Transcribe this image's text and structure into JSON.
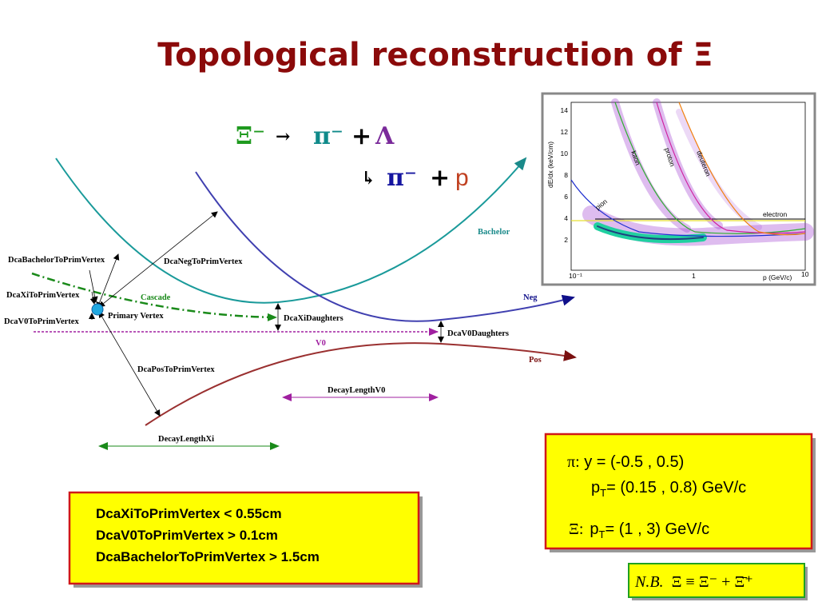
{
  "title": "Topological reconstruction of Ξ",
  "decay": {
    "line1": [
      "Ξ⁻",
      "→",
      "π⁻",
      "+",
      "Λ"
    ],
    "line2": [
      "↳",
      "π⁻",
      "+",
      "p"
    ]
  },
  "diagram": {
    "dca_bachelor": "DcaBachelorToPrimVertex",
    "dca_xi": "DcaXiToPrimVertex",
    "dca_v0": "DcaV0ToPrimVertex",
    "primary_vertex": "Primary Vertex",
    "cascade": "Cascade",
    "dca_neg": "DcaNegToPrimVertex",
    "dca_pos": "DcaPosToPrimVertex",
    "bachelor": "Bachelor",
    "neg": "Neg",
    "pos": "Pos",
    "v0": "V0",
    "dca_xi_daughters": "DcaXiDaughters",
    "dca_v0_daughters": "DcaV0Daughters",
    "decay_length_v0": "DecayLengthV0",
    "decay_length_xi": "DecayLengthXi"
  },
  "inset": {
    "y_axis_label": "dE/dx  (keV/cm)",
    "y_ticks": [
      "2",
      "4",
      "6",
      "8",
      "10",
      "12",
      "14"
    ],
    "x_ticks": [
      "10⁻¹",
      "1",
      "10"
    ],
    "x_axis_label": "p  (GeV/c)",
    "curves": {
      "pion": "pion",
      "kaon": "kaon",
      "proton": "proton",
      "deuteron": "deuteron",
      "electron": "electron"
    }
  },
  "cuts": [
    "DcaXiToPrimVertex < 0.55cm",
    "DcaV0ToPrimVertex > 0.1cm",
    "DcaBachelorToPrimVertex > 1.5cm"
  ],
  "kinematics": {
    "pi_label": "π:",
    "pi_y": " y = (-0.5 , 0.5)",
    "pi_pt": [
      "p",
      "T",
      "= (0.15 , 0.8) GeV/c"
    ],
    "xi_label": "Ξ:",
    "xi_pt": [
      "p",
      "T",
      "= (1 , 3) GeV/c"
    ]
  },
  "nb": {
    "label": "N.B.",
    "formula": "Ξ ≡ Ξ⁻ + Ξ̄⁺"
  }
}
